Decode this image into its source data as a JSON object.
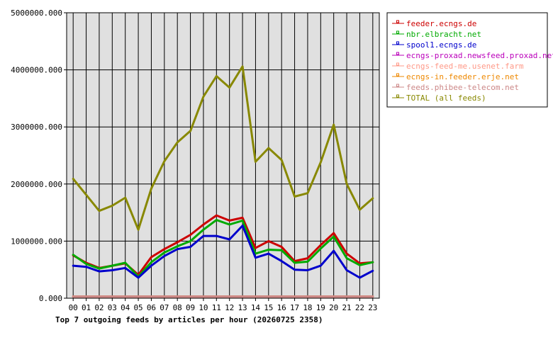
{
  "chart_data": {
    "type": "line",
    "title": "Top 7 outgoing feeds by articles per hour (20260725 2358)",
    "x": [
      "00",
      "01",
      "02",
      "03",
      "04",
      "05",
      "06",
      "07",
      "08",
      "09",
      "10",
      "11",
      "12",
      "13",
      "14",
      "15",
      "16",
      "17",
      "18",
      "19",
      "20",
      "21",
      "22",
      "23"
    ],
    "y_ticks": [
      "0.000",
      "1000000.000",
      "2000000.000",
      "3000000.000",
      "4000000.000",
      "5000000.000"
    ],
    "ylim": [
      0,
      5000000
    ],
    "grid": true,
    "legend_position": "right",
    "plot_background": "#e0e0e0",
    "series": [
      {
        "name": "feeder.ecngs.de",
        "color": "#cc0000",
        "values": [
          750000,
          620000,
          530000,
          570000,
          610000,
          410000,
          720000,
          860000,
          980000,
          1110000,
          1290000,
          1450000,
          1360000,
          1410000,
          880000,
          1000000,
          900000,
          650000,
          700000,
          930000,
          1140000,
          780000,
          610000,
          630000
        ]
      },
      {
        "name": "nbr.elbracht.net",
        "color": "#00aa00",
        "values": [
          760000,
          600000,
          520000,
          570000,
          620000,
          380000,
          630000,
          800000,
          910000,
          1000000,
          1200000,
          1370000,
          1290000,
          1360000,
          780000,
          850000,
          840000,
          620000,
          640000,
          870000,
          1080000,
          700000,
          580000,
          630000
        ]
      },
      {
        "name": "spool1.ecngs.de",
        "color": "#0000cc",
        "values": [
          570000,
          550000,
          470000,
          490000,
          530000,
          360000,
          570000,
          740000,
          860000,
          900000,
          1090000,
          1090000,
          1030000,
          1270000,
          710000,
          780000,
          650000,
          500000,
          490000,
          570000,
          830000,
          490000,
          360000,
          480000
        ]
      },
      {
        "name": "ecngs-proxad.newsfeed.proxad.net",
        "color": "#bb00bb",
        "values": [
          30000,
          30000,
          30000,
          30000,
          30000,
          30000,
          30000,
          30000,
          30000,
          30000,
          30000,
          30000,
          30000,
          30000,
          30000,
          30000,
          30000,
          30000,
          30000,
          30000,
          30000,
          30000,
          30000,
          30000
        ]
      },
      {
        "name": "ecngs-feed-me.usenet.farm",
        "color": "#ff9988",
        "values": [
          30000,
          30000,
          30000,
          30000,
          30000,
          30000,
          30000,
          30000,
          30000,
          30000,
          30000,
          30000,
          30000,
          30000,
          30000,
          30000,
          30000,
          30000,
          30000,
          30000,
          30000,
          30000,
          30000,
          30000
        ]
      },
      {
        "name": "ecngs-in.feeder.erje.net",
        "color": "#ee8800",
        "values": [
          30000,
          30000,
          30000,
          30000,
          30000,
          30000,
          30000,
          30000,
          30000,
          30000,
          30000,
          30000,
          30000,
          30000,
          30000,
          30000,
          30000,
          30000,
          30000,
          30000,
          30000,
          30000,
          30000,
          30000
        ]
      },
      {
        "name": "feeds.phibee-telecom.net",
        "color": "#cc8888",
        "values": [
          30000,
          30000,
          30000,
          30000,
          30000,
          30000,
          30000,
          30000,
          30000,
          30000,
          30000,
          30000,
          30000,
          30000,
          30000,
          30000,
          30000,
          30000,
          30000,
          30000,
          30000,
          30000,
          30000,
          30000
        ]
      },
      {
        "name": "TOTAL (all feeds)",
        "color": "#888800",
        "values": [
          2090000,
          1810000,
          1530000,
          1620000,
          1760000,
          1200000,
          1920000,
          2400000,
          2730000,
          2930000,
          3530000,
          3890000,
          3690000,
          4060000,
          2390000,
          2630000,
          2420000,
          1780000,
          1840000,
          2380000,
          3040000,
          2000000,
          1550000,
          1750000
        ]
      }
    ]
  }
}
